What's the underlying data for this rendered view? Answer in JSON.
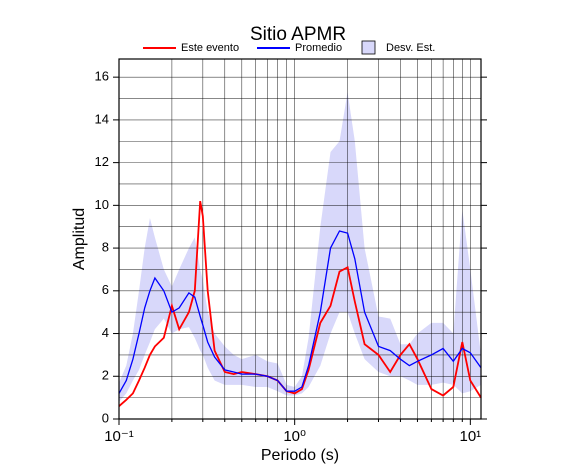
{
  "chart_data": {
    "type": "line",
    "title": "Sitio APMR",
    "xlabel": "Periodo (s)",
    "ylabel": "Amplitud",
    "xscale": "log",
    "grid": true,
    "xlim": [
      0.1,
      11.5
    ],
    "ylim": [
      0,
      16.85
    ],
    "xticks": [
      {
        "value": 0.1,
        "label": "10⁻¹"
      },
      {
        "value": 1,
        "label": "10⁰"
      },
      {
        "value": 10,
        "label": "10¹"
      }
    ],
    "xminor_ticks": [
      0.2,
      0.3,
      0.4,
      0.5,
      0.6,
      0.7,
      0.8,
      0.9,
      2,
      3,
      4,
      5,
      6,
      7,
      8,
      9
    ],
    "yticks": [
      0,
      2,
      4,
      6,
      8,
      10,
      12,
      14,
      16
    ],
    "yminor_ticks": [
      1,
      3,
      5,
      7,
      9,
      11,
      13,
      15
    ],
    "x": [
      0.1,
      0.11,
      0.12,
      0.13,
      0.14,
      0.15,
      0.16,
      0.18,
      0.2,
      0.22,
      0.25,
      0.27,
      0.29,
      0.3,
      0.32,
      0.35,
      0.4,
      0.45,
      0.5,
      0.6,
      0.7,
      0.8,
      0.9,
      1.0,
      1.1,
      1.2,
      1.4,
      1.6,
      1.8,
      2.0,
      2.2,
      2.5,
      3,
      3.5,
      4,
      4.5,
      5,
      6,
      7,
      8,
      9,
      10,
      11.5
    ],
    "band": {
      "name": "Desv. Est.",
      "color": "#d8d8fa",
      "upper": [
        1.7,
        2.5,
        4,
        6,
        8,
        9.4,
        8.5,
        7.0,
        6.2,
        7.0,
        8.0,
        8.5,
        7.0,
        6.5,
        5.0,
        4.0,
        3.4,
        3.0,
        2.8,
        3.0,
        2.7,
        2.6,
        1.6,
        1.5,
        2.0,
        3.8,
        9.0,
        12.5,
        13.0,
        15.3,
        13.0,
        8.0,
        4.8,
        4.7,
        3.5,
        3.5,
        4.0,
        4.5,
        4.5,
        4.0,
        9.8,
        7.0,
        3.0
      ],
      "lower": [
        0.8,
        1.2,
        1.8,
        2.3,
        3.0,
        3.6,
        4.2,
        4.7,
        4.0,
        4.2,
        4.3,
        3.8,
        3.2,
        3.0,
        2.4,
        1.8,
        1.6,
        1.6,
        1.6,
        1.5,
        1.5,
        1.3,
        1.1,
        1.1,
        1.2,
        1.5,
        2.5,
        4.0,
        5.0,
        5.0,
        4.0,
        2.8,
        2.2,
        2.0,
        2.0,
        1.8,
        1.6,
        1.6,
        1.7,
        1.6,
        1.2,
        1.3,
        1.6
      ]
    },
    "series": [
      {
        "name": "Este evento",
        "color": "#ff0000",
        "values": [
          0.6,
          0.9,
          1.2,
          1.8,
          2.4,
          3.0,
          3.4,
          3.8,
          5.3,
          4.2,
          5.0,
          6.0,
          10.2,
          9.5,
          6.0,
          3.2,
          2.2,
          2.1,
          2.2,
          2.1,
          2.0,
          1.8,
          1.3,
          1.2,
          1.4,
          2.3,
          4.5,
          5.3,
          6.9,
          7.1,
          5.5,
          3.5,
          3.0,
          2.2,
          3.0,
          3.5,
          2.8,
          1.4,
          1.1,
          1.5,
          3.6,
          1.8,
          1.0
        ]
      },
      {
        "name": "Promedio",
        "color": "#0000ff",
        "values": [
          1.2,
          1.8,
          2.8,
          4.0,
          5.2,
          6.0,
          6.6,
          6.0,
          5.0,
          5.2,
          5.9,
          5.7,
          4.8,
          4.4,
          3.6,
          2.9,
          2.3,
          2.2,
          2.1,
          2.1,
          2.0,
          1.8,
          1.3,
          1.3,
          1.5,
          2.5,
          5.0,
          8.0,
          8.8,
          8.7,
          7.5,
          5.0,
          3.4,
          3.2,
          2.8,
          2.5,
          2.7,
          3.0,
          3.3,
          2.7,
          3.3,
          3.1,
          2.4
        ]
      }
    ]
  }
}
